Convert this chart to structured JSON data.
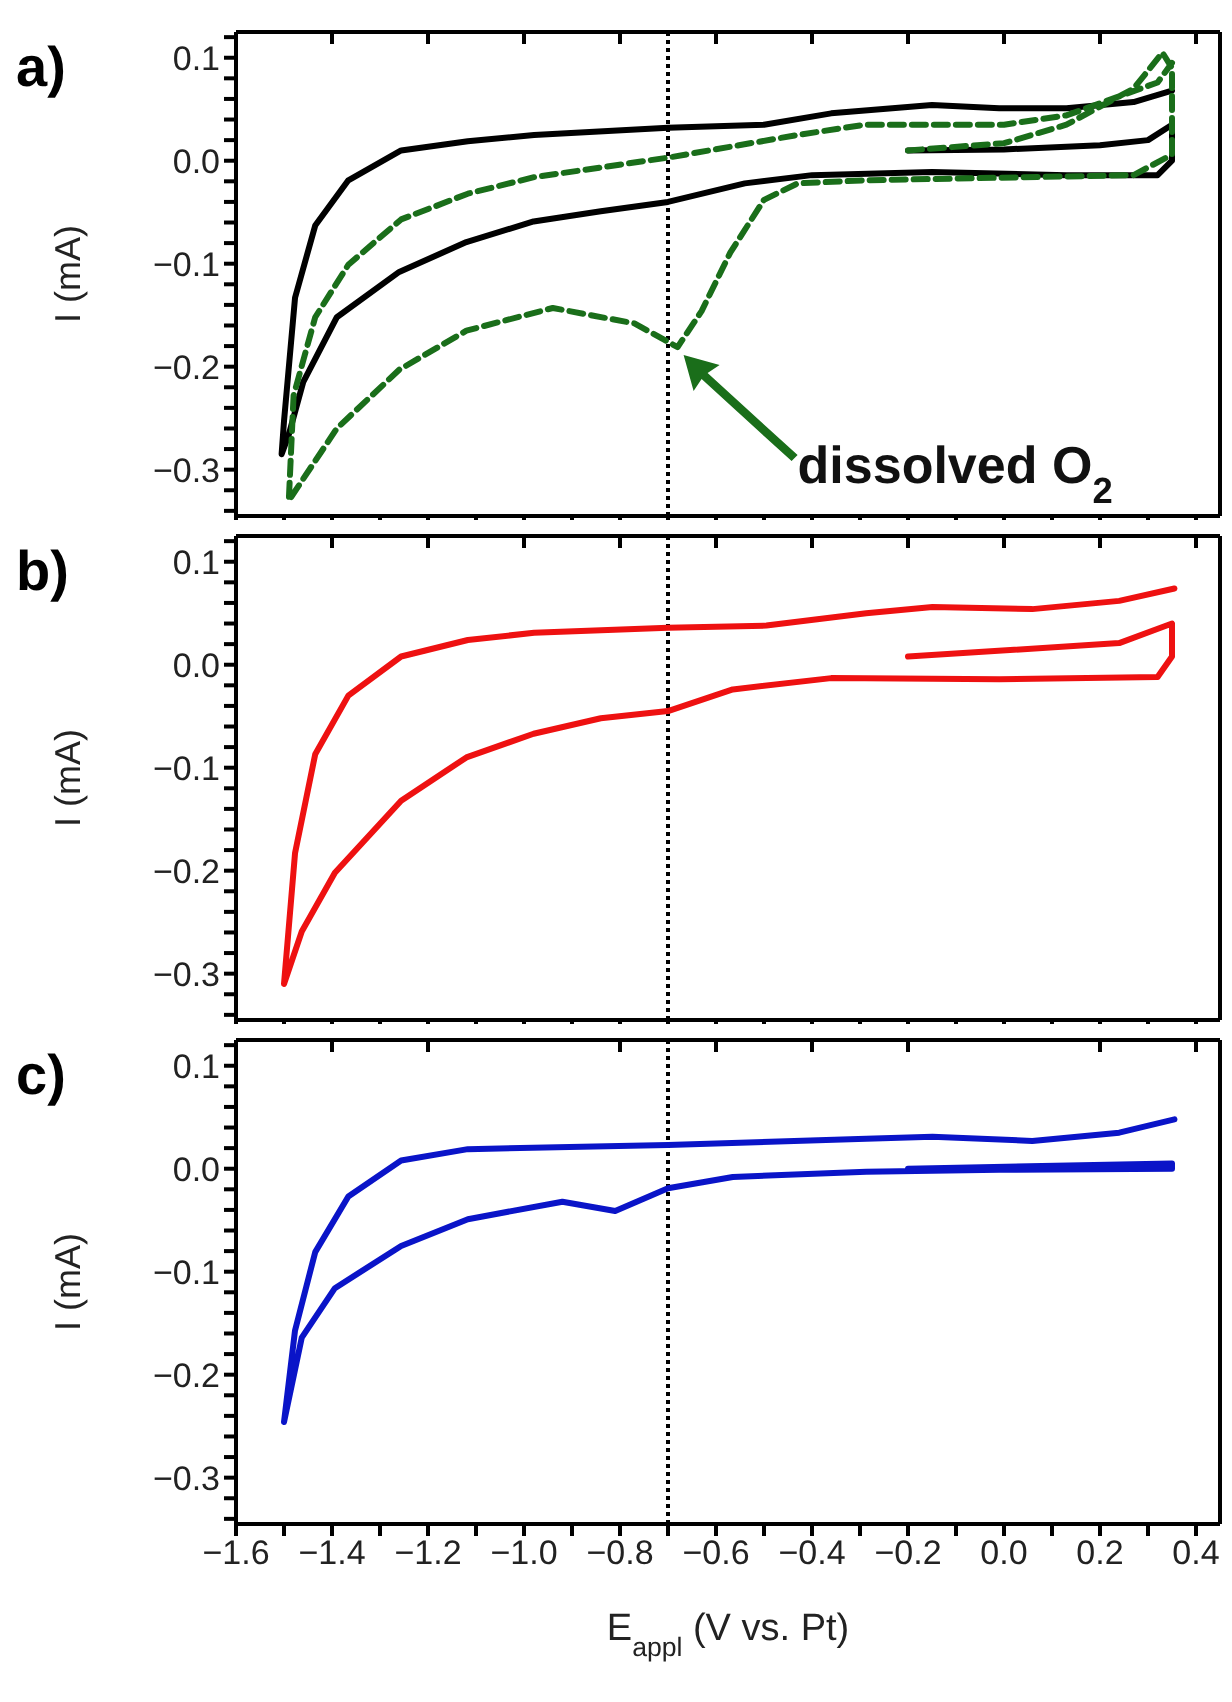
{
  "chart_data": [
    {
      "type": "line",
      "ylabel": "I (mA)",
      "annotations": [
        "a)",
        {
          "text": "dissolved O$_{2}$",
          "x": -0.68,
          "y": -0.181
        }
      ],
      "xlim": [
        -1.6,
        0.45
      ],
      "ylim": [
        -0.345,
        0.125
      ],
      "xticks": [
        -1.6,
        {
          "value": -1.5,
          "label": null
        },
        -1.4,
        {
          "value": -1.3,
          "label": null
        },
        -1.2,
        {
          "value": -1.1,
          "label": null
        },
        -1.0,
        {
          "value": -0.9,
          "label": null
        },
        -0.8,
        {
          "value": -0.7,
          "label": null
        },
        -0.6,
        {
          "value": -0.5,
          "label": null
        },
        -0.4,
        {
          "value": -0.3,
          "label": null
        },
        -0.2,
        {
          "value": -0.1,
          "label": null
        },
        0.0,
        {
          "value": 0.1,
          "label": null
        },
        0.2,
        {
          "value": 0.3,
          "label": null
        },
        0.4
      ],
      "yticks": [
        {
          "value": -0.34,
          "label": null
        },
        {
          "value": -0.32,
          "label": null
        },
        -0.3,
        {
          "value": -0.28,
          "label": null
        },
        {
          "value": -0.26,
          "label": null
        },
        {
          "value": -0.24,
          "label": null
        },
        {
          "value": -0.22,
          "label": null
        },
        -0.2,
        {
          "value": -0.18,
          "label": null
        },
        {
          "value": -0.16,
          "label": null
        },
        {
          "value": -0.14,
          "label": null
        },
        {
          "value": -0.12,
          "label": null
        },
        -0.1,
        {
          "value": -0.08,
          "label": null
        },
        {
          "value": -0.06,
          "label": null
        },
        {
          "value": -0.04,
          "label": null
        },
        {
          "value": -0.02,
          "label": null
        },
        {
          "value": 0.0,
          "label": "0.0"
        },
        {
          "value": 0.02,
          "label": null
        },
        {
          "value": 0.04,
          "label": null
        },
        {
          "value": 0.06,
          "label": null
        },
        {
          "value": 0.08,
          "label": null
        },
        0.1,
        {
          "value": 0.12,
          "label": null
        }
      ],
      "tick_labels": "y",
      "marker": "none",
      "ref_lines": [
        {
          "axis": "x",
          "value": -0.7,
          "color": "#000000",
          "line_style": "dotted"
        }
      ],
      "series": [
        {
          "color": "#000000",
          "line_style": "solid",
          "x": [
            -0.2,
            0.0,
            0.2,
            0.3,
            0.35,
            0.35,
            0.32,
            0.13,
            -0.15,
            -0.4,
            -0.54,
            -0.7,
            -0.84,
            -0.98,
            -1.12,
            -1.26,
            -1.39,
            -1.46,
            -1.49,
            -1.505,
            -1.5,
            -1.477,
            -1.435,
            -1.366,
            -1.256,
            -1.117,
            -0.979,
            -0.7,
            -0.5,
            -0.36,
            -0.15,
            -0.01,
            0.13,
            0.27,
            0.35
          ],
          "values": [
            0.01,
            0.011,
            0.015,
            0.02,
            0.035,
            0.0,
            -0.014,
            -0.014,
            -0.011,
            -0.014,
            -0.022,
            -0.04,
            -0.049,
            -0.059,
            -0.079,
            -0.108,
            -0.152,
            -0.215,
            -0.266,
            -0.285,
            -0.253,
            -0.133,
            -0.063,
            -0.019,
            0.01,
            0.019,
            0.025,
            0.032,
            0.035,
            0.046,
            0.054,
            0.051,
            0.051,
            0.057,
            0.068
          ]
        },
        {
          "color": "#1a6e1a",
          "line_style": "dashed",
          "x": [
            -0.2,
            0.0,
            0.13,
            0.27,
            0.33,
            0.35,
            0.35,
            0.27,
            -0.29,
            -0.43,
            -0.5,
            -0.57,
            -0.63,
            -0.68,
            -0.77,
            -0.94,
            -1.12,
            -1.26,
            -1.39,
            -1.49,
            -1.48,
            -1.435,
            -1.366,
            -1.256,
            -1.117,
            -0.979,
            -0.7,
            -0.43,
            -0.29,
            0.0,
            0.13,
            0.32,
            0.35
          ],
          "values": [
            0.01,
            0.017,
            0.035,
            0.07,
            0.105,
            0.09,
            0.006,
            -0.014,
            -0.019,
            -0.022,
            -0.038,
            -0.089,
            -0.146,
            -0.181,
            -0.158,
            -0.143,
            -0.165,
            -0.203,
            -0.26,
            -0.33,
            -0.228,
            -0.152,
            -0.101,
            -0.057,
            -0.032,
            -0.016,
            0.003,
            0.025,
            0.035,
            0.035,
            0.044,
            0.076,
            0.095
          ]
        }
      ]
    },
    {
      "type": "line",
      "ylabel": "I (mA)",
      "annotations": [
        "b)"
      ],
      "xlim": [
        -1.6,
        0.45
      ],
      "ylim": [
        -0.345,
        0.125
      ],
      "xticks": [
        -1.6,
        {
          "value": -1.5,
          "label": null
        },
        -1.4,
        {
          "value": -1.3,
          "label": null
        },
        -1.2,
        {
          "value": -1.1,
          "label": null
        },
        -1.0,
        {
          "value": -0.9,
          "label": null
        },
        -0.8,
        {
          "value": -0.7,
          "label": null
        },
        -0.6,
        {
          "value": -0.5,
          "label": null
        },
        -0.4,
        {
          "value": -0.3,
          "label": null
        },
        -0.2,
        {
          "value": -0.1,
          "label": null
        },
        0.0,
        {
          "value": 0.1,
          "label": null
        },
        0.2,
        {
          "value": 0.3,
          "label": null
        },
        0.4
      ],
      "yticks": [
        {
          "value": -0.34,
          "label": null
        },
        {
          "value": -0.32,
          "label": null
        },
        -0.3,
        {
          "value": -0.28,
          "label": null
        },
        {
          "value": -0.26,
          "label": null
        },
        {
          "value": -0.24,
          "label": null
        },
        {
          "value": -0.22,
          "label": null
        },
        -0.2,
        {
          "value": -0.18,
          "label": null
        },
        {
          "value": -0.16,
          "label": null
        },
        {
          "value": -0.14,
          "label": null
        },
        {
          "value": -0.12,
          "label": null
        },
        -0.1,
        {
          "value": -0.08,
          "label": null
        },
        {
          "value": -0.06,
          "label": null
        },
        {
          "value": -0.04,
          "label": null
        },
        {
          "value": -0.02,
          "label": null
        },
        {
          "value": 0.0,
          "label": "0.0"
        },
        {
          "value": 0.02,
          "label": null
        },
        {
          "value": 0.04,
          "label": null
        },
        {
          "value": 0.06,
          "label": null
        },
        {
          "value": 0.08,
          "label": null
        },
        0.1,
        {
          "value": 0.12,
          "label": null
        }
      ],
      "tick_labels": "y",
      "marker": "none",
      "ref_lines": [
        {
          "axis": "x",
          "value": -0.7,
          "color": "#000000",
          "line_style": "dotted"
        }
      ],
      "series": [
        {
          "color": "#ee1111",
          "line_style": "solid",
          "x": [
            -0.2,
            0.24,
            0.35,
            0.35,
            0.32,
            -0.01,
            -0.36,
            -0.565,
            -0.7,
            -0.84,
            -0.98,
            -1.12,
            -1.256,
            -1.394,
            -1.463,
            -1.5,
            -1.477,
            -1.435,
            -1.366,
            -1.256,
            -1.117,
            -0.979,
            -0.7,
            -0.495,
            -0.287,
            -0.149,
            0.059,
            0.24,
            0.355
          ],
          "values": [
            0.008,
            0.021,
            0.04,
            0.008,
            -0.012,
            -0.014,
            -0.013,
            -0.024,
            -0.045,
            -0.052,
            -0.067,
            -0.09,
            -0.132,
            -0.202,
            -0.259,
            -0.31,
            -0.183,
            -0.087,
            -0.03,
            0.008,
            0.024,
            0.031,
            0.036,
            0.038,
            0.05,
            0.056,
            0.054,
            0.062,
            0.074
          ]
        }
      ]
    },
    {
      "type": "line",
      "ylabel": "I (mA)",
      "xlabel": "E$_{appl}$ (V vs. Pt)",
      "annotations": [
        "c)"
      ],
      "xlim": [
        -1.6,
        0.45
      ],
      "ylim": [
        -0.345,
        0.125
      ],
      "xticks": [
        -1.6,
        {
          "value": -1.5,
          "label": null
        },
        -1.4,
        {
          "value": -1.3,
          "label": null
        },
        -1.2,
        {
          "value": -1.1,
          "label": null
        },
        {
          "value": -1.0,
          "label": "−1.0"
        },
        {
          "value": -0.9,
          "label": null
        },
        -0.8,
        {
          "value": -0.7,
          "label": null
        },
        -0.6,
        {
          "value": -0.5,
          "label": null
        },
        -0.4,
        {
          "value": -0.3,
          "label": null
        },
        -0.2,
        {
          "value": -0.1,
          "label": null
        },
        {
          "value": 0.0,
          "label": "0.0"
        },
        {
          "value": 0.1,
          "label": null
        },
        0.2,
        {
          "value": 0.3,
          "label": null
        },
        0.4
      ],
      "yticks": [
        {
          "value": -0.34,
          "label": null
        },
        {
          "value": -0.32,
          "label": null
        },
        -0.3,
        {
          "value": -0.28,
          "label": null
        },
        {
          "value": -0.26,
          "label": null
        },
        {
          "value": -0.24,
          "label": null
        },
        {
          "value": -0.22,
          "label": null
        },
        -0.2,
        {
          "value": -0.18,
          "label": null
        },
        {
          "value": -0.16,
          "label": null
        },
        {
          "value": -0.14,
          "label": null
        },
        {
          "value": -0.12,
          "label": null
        },
        -0.1,
        {
          "value": -0.08,
          "label": null
        },
        {
          "value": -0.06,
          "label": null
        },
        {
          "value": -0.04,
          "label": null
        },
        {
          "value": -0.02,
          "label": null
        },
        {
          "value": 0.0,
          "label": "0.0"
        },
        {
          "value": 0.02,
          "label": null
        },
        {
          "value": 0.04,
          "label": null
        },
        {
          "value": 0.06,
          "label": null
        },
        {
          "value": 0.08,
          "label": null
        },
        0.1,
        {
          "value": 0.12,
          "label": null
        }
      ],
      "marker": "none",
      "ref_lines": [
        {
          "axis": "x",
          "value": -0.7,
          "color": "#000000",
          "line_style": "dotted"
        }
      ],
      "series": [
        {
          "color": "#0a14c8",
          "line_style": "solid",
          "x": [
            -0.2,
            0.35,
            0.35,
            -0.01,
            -0.287,
            -0.565,
            -0.7,
            -0.81,
            -0.92,
            -1.117,
            -1.256,
            -1.394,
            -1.463,
            -1.5,
            -1.477,
            -1.435,
            -1.366,
            -1.256,
            -1.117,
            -0.7,
            -0.287,
            -0.149,
            0.059,
            0.24,
            0.355
          ],
          "values": [
            0.0,
            0.005,
            0.0,
            -0.001,
            -0.003,
            -0.008,
            -0.019,
            -0.041,
            -0.032,
            -0.049,
            -0.075,
            -0.116,
            -0.164,
            -0.246,
            -0.157,
            -0.081,
            -0.027,
            0.008,
            0.019,
            0.023,
            0.029,
            0.031,
            0.027,
            0.035,
            0.048
          ]
        }
      ]
    }
  ]
}
